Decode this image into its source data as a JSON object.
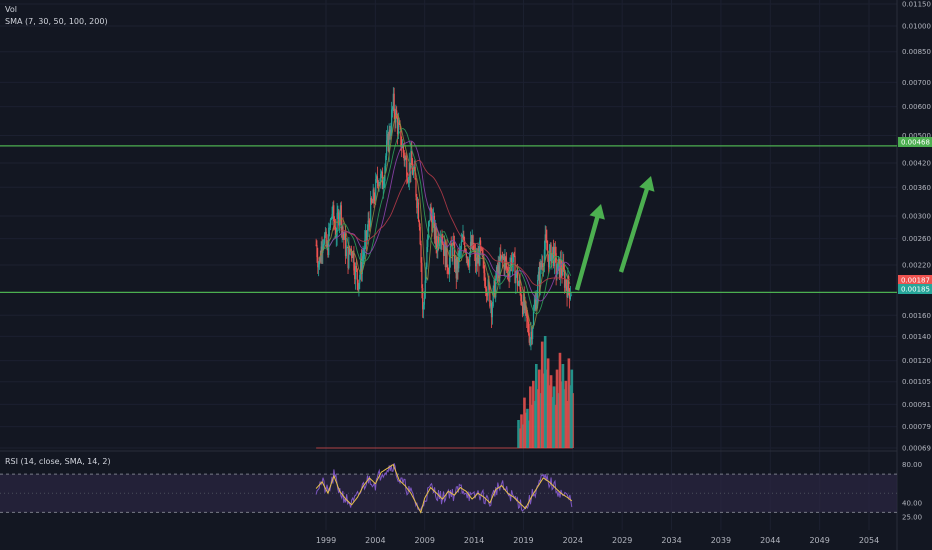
{
  "legend": {
    "vol": "Vol",
    "sma": "SMA (7, 30, 50, 100, 200)",
    "rsi": "RSI (14, close, SMA, 14, 2)"
  },
  "colors": {
    "background": "#131722",
    "up": "#26a69a",
    "down": "#ef5350",
    "hline": "#4caf50",
    "arrow": "#4caf50",
    "rsi": "#7e57c2",
    "rsi_ma": "#e8c24a",
    "rsi_band": "#2a2540",
    "sma_green": "#2e9f5a",
    "sma_dark_red": "#b23a48",
    "sma_violet": "#8e44ad",
    "sma_olive": "#8d8a3c"
  },
  "chart_data": {
    "type": "candlestick",
    "price_axis": {
      "labels": [
        "0.01150",
        "0.01000",
        "0.00850",
        "0.00700",
        "0.00600",
        "0.00500",
        "0.00420",
        "0.00360",
        "0.00300",
        "0.00260",
        "0.00220",
        "0.00160",
        "0.00140",
        "0.00120",
        "0.00105",
        "0.00091",
        "0.00079",
        "0.00069"
      ],
      "values": [
        0.0115,
        0.01,
        0.0085,
        0.007,
        0.006,
        0.005,
        0.0042,
        0.0036,
        0.003,
        0.0026,
        0.0022,
        0.0016,
        0.0014,
        0.0012,
        0.00105,
        0.00091,
        0.00079,
        0.00069
      ],
      "scale": "log"
    },
    "x_axis": {
      "labels": [
        "1999",
        "2004",
        "2009",
        "2014",
        "2019",
        "2024",
        "2029",
        "2034",
        "2039",
        "2044",
        "2049",
        "2054"
      ]
    },
    "price_tags": [
      {
        "label": "0.00468",
        "value": 0.00468,
        "color": "#4caf50"
      },
      {
        "label": "0.00187",
        "value": 0.00187,
        "color": "#ef5350"
      },
      {
        "label": "0.00185",
        "value": 0.00185,
        "color": "#26a69a"
      }
    ],
    "horizontal_lines": [
      0.00468,
      0.00185
    ],
    "price_series": [
      [
        1998.0,
        0.0025
      ],
      [
        1998.3,
        0.0022
      ],
      [
        1998.7,
        0.0027
      ],
      [
        1999.1,
        0.0024
      ],
      [
        1999.6,
        0.0031
      ],
      [
        2000.0,
        0.0027
      ],
      [
        2000.4,
        0.0032
      ],
      [
        2000.8,
        0.0026
      ],
      [
        2001.2,
        0.0023
      ],
      [
        2001.6,
        0.0025
      ],
      [
        2002.0,
        0.0021
      ],
      [
        2002.3,
        0.002
      ],
      [
        2002.7,
        0.0023
      ],
      [
        2003.1,
        0.0026
      ],
      [
        2003.5,
        0.0031
      ],
      [
        2003.9,
        0.0034
      ],
      [
        2004.3,
        0.0039
      ],
      [
        2004.7,
        0.0037
      ],
      [
        2005.1,
        0.0045
      ],
      [
        2005.5,
        0.0052
      ],
      [
        2005.8,
        0.0061
      ],
      [
        2006.1,
        0.0056
      ],
      [
        2006.4,
        0.0051
      ],
      [
        2006.7,
        0.0047
      ],
      [
        2007.0,
        0.0043
      ],
      [
        2007.3,
        0.004
      ],
      [
        2007.6,
        0.0042
      ],
      [
        2007.9,
        0.0039
      ],
      [
        2008.2,
        0.0034
      ],
      [
        2008.5,
        0.0029
      ],
      [
        2008.8,
        0.0016
      ],
      [
        2009.1,
        0.0021
      ],
      [
        2009.5,
        0.0031
      ],
      [
        2009.8,
        0.0029
      ],
      [
        2010.2,
        0.0025
      ],
      [
        2010.6,
        0.0028
      ],
      [
        2011.0,
        0.0024
      ],
      [
        2011.4,
        0.0022
      ],
      [
        2011.8,
        0.0025
      ],
      [
        2012.2,
        0.0021
      ],
      [
        2012.6,
        0.0024
      ],
      [
        2013.0,
        0.0026
      ],
      [
        2013.4,
        0.0023
      ],
      [
        2013.8,
        0.0025
      ],
      [
        2014.2,
        0.0022
      ],
      [
        2014.6,
        0.0024
      ],
      [
        2015.0,
        0.0021
      ],
      [
        2015.4,
        0.0019
      ],
      [
        2015.8,
        0.0017
      ],
      [
        2016.2,
        0.002
      ],
      [
        2016.6,
        0.0022
      ],
      [
        2017.0,
        0.0023
      ],
      [
        2017.4,
        0.0021
      ],
      [
        2017.8,
        0.0023
      ],
      [
        2018.2,
        0.0021
      ],
      [
        2018.6,
        0.0019
      ],
      [
        2019.0,
        0.0017
      ],
      [
        2019.4,
        0.0015
      ],
      [
        2019.7,
        0.0014
      ],
      [
        2020.0,
        0.0016
      ],
      [
        2020.4,
        0.0019
      ],
      [
        2020.8,
        0.0022
      ],
      [
        2021.2,
        0.0025
      ],
      [
        2021.6,
        0.0023
      ],
      [
        2022.0,
        0.0024
      ],
      [
        2022.4,
        0.0021
      ],
      [
        2022.8,
        0.0022
      ],
      [
        2023.2,
        0.002
      ],
      [
        2023.6,
        0.0019
      ],
      [
        2023.9,
        0.00187
      ]
    ],
    "volume_series": [
      [
        2018.5,
        0.25
      ],
      [
        2018.8,
        0.3
      ],
      [
        2019.1,
        0.45
      ],
      [
        2019.4,
        0.35
      ],
      [
        2019.7,
        0.55
      ],
      [
        2020.0,
        0.6
      ],
      [
        2020.3,
        0.75
      ],
      [
        2020.6,
        0.7
      ],
      [
        2020.9,
        0.95
      ],
      [
        2021.2,
        1.0
      ],
      [
        2021.5,
        0.8
      ],
      [
        2021.8,
        0.65
      ],
      [
        2022.1,
        0.55
      ],
      [
        2022.4,
        0.7
      ],
      [
        2022.7,
        0.85
      ],
      [
        2023.0,
        0.75
      ],
      [
        2023.3,
        0.6
      ],
      [
        2023.6,
        0.8
      ],
      [
        2023.9,
        0.7
      ]
    ],
    "rsi_axis": {
      "labels": [
        "80.00",
        "40.00",
        "25.00"
      ],
      "values": [
        80,
        40,
        25
      ],
      "band": [
        70,
        30
      ]
    },
    "rsi_series": [
      [
        1998.0,
        55
      ],
      [
        1998.6,
        62
      ],
      [
        1999.2,
        50
      ],
      [
        1999.8,
        68
      ],
      [
        2000.4,
        52
      ],
      [
        2001.0,
        44
      ],
      [
        2001.6,
        38
      ],
      [
        2002.2,
        46
      ],
      [
        2002.8,
        58
      ],
      [
        2003.4,
        66
      ],
      [
        2004.0,
        60
      ],
      [
        2004.6,
        72
      ],
      [
        2005.2,
        76
      ],
      [
        2005.8,
        80
      ],
      [
        2006.4,
        64
      ],
      [
        2007.0,
        58
      ],
      [
        2007.6,
        50
      ],
      [
        2008.2,
        38
      ],
      [
        2008.6,
        30
      ],
      [
        2009.0,
        45
      ],
      [
        2009.6,
        56
      ],
      [
        2010.2,
        50
      ],
      [
        2010.8,
        44
      ],
      [
        2011.4,
        52
      ],
      [
        2012.0,
        48
      ],
      [
        2012.6,
        56
      ],
      [
        2013.2,
        52
      ],
      [
        2013.8,
        44
      ],
      [
        2014.4,
        50
      ],
      [
        2015.0,
        46
      ],
      [
        2015.6,
        40
      ],
      [
        2016.2,
        54
      ],
      [
        2016.8,
        58
      ],
      [
        2017.4,
        50
      ],
      [
        2018.0,
        46
      ],
      [
        2018.6,
        40
      ],
      [
        2019.2,
        34
      ],
      [
        2019.8,
        46
      ],
      [
        2020.4,
        56
      ],
      [
        2021.0,
        66
      ],
      [
        2021.6,
        62
      ],
      [
        2022.2,
        56
      ],
      [
        2022.8,
        50
      ],
      [
        2023.4,
        46
      ],
      [
        2023.9,
        42
      ]
    ]
  }
}
